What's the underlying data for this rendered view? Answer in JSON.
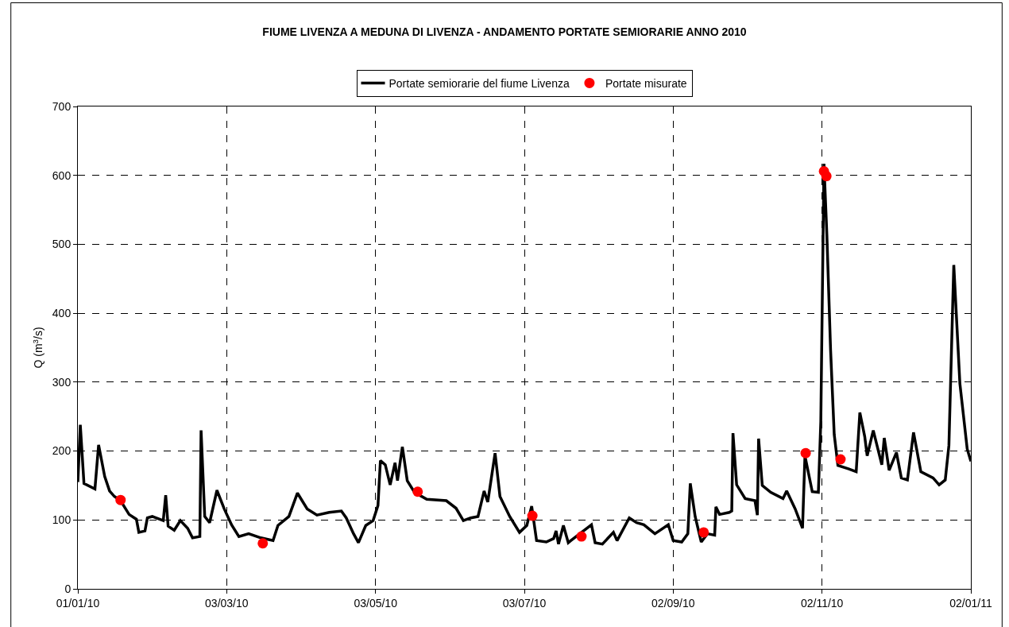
{
  "chart_data": {
    "type": "line",
    "title": "FIUME LIVENZA A MEDUNA DI LIVENZA - ANDAMENTO PORTATE SEMIORARIE ANNO 2010",
    "ylabel": "Q (m$^{3}$/s)",
    "xlim": [
      "2010-01-01",
      "2011-01-02"
    ],
    "xticks": [
      {
        "value": "2010-01-01",
        "label": "01/01/10"
      },
      {
        "value": "2010-03-03",
        "label": "03/03/10"
      },
      {
        "value": "2010-05-03",
        "label": "03/05/10"
      },
      {
        "value": "2010-07-03",
        "label": "03/07/10"
      },
      {
        "value": "2010-09-02",
        "label": "02/09/10"
      },
      {
        "value": "2010-11-02",
        "label": "02/11/10"
      },
      {
        "value": "2011-01-02",
        "label": "02/01/11"
      }
    ],
    "ylim": [
      0,
      700
    ],
    "yticks": [
      0,
      100,
      200,
      300,
      400,
      500,
      600,
      700
    ],
    "grid": true,
    "legend": "top",
    "series": [
      {
        "name": "Portate semiorarie del fiume Livenza",
        "color": "#000000",
        "marker": "none",
        "x": [
          "2010-01-01",
          "2010-01-02",
          "2010-01-03T12:00",
          "2010-01-08",
          "2010-01-09T12:00",
          "2010-01-12",
          "2010-01-14",
          "2010-01-16",
          "2010-01-18T12:00",
          "2010-01-22",
          "2010-01-25",
          "2010-01-26",
          "2010-01-28T12:00",
          "2010-01-29T12:00",
          "2010-01-31T12:00",
          "2010-02-05",
          "2010-02-06",
          "2010-02-07",
          "2010-02-09T12:00",
          "2010-02-12",
          "2010-02-15",
          "2010-02-17",
          "2010-02-20",
          "2010-02-20T12:00",
          "2010-02-22",
          "2010-02-24",
          "2010-02-27",
          "2010-03-02",
          "2010-03-05",
          "2010-03-08",
          "2010-03-12",
          "2010-03-17",
          "2010-03-22",
          "2010-03-24",
          "2010-03-28T12:00",
          "2010-04-01",
          "2010-04-05",
          "2010-04-09",
          "2010-04-14",
          "2010-04-19",
          "2010-04-21",
          "2010-04-24",
          "2010-04-26",
          "2010-04-29",
          "2010-05-02",
          "2010-05-04",
          "2010-05-05",
          "2010-05-07",
          "2010-05-09",
          "2010-05-11",
          "2010-05-12",
          "2010-05-14",
          "2010-05-16",
          "2010-05-19",
          "2010-05-24",
          "2010-06-01",
          "2010-06-05",
          "2010-06-08",
          "2010-06-11",
          "2010-06-14",
          "2010-06-16T12:00",
          "2010-06-18",
          "2010-06-21",
          "2010-06-23",
          "2010-06-27",
          "2010-07-01",
          "2010-07-04",
          "2010-07-06",
          "2010-07-08",
          "2010-07-12",
          "2010-07-15",
          "2010-07-16",
          "2010-07-17",
          "2010-07-19",
          "2010-07-21",
          "2010-07-22",
          "2010-07-30T12:00",
          "2010-08-01",
          "2010-08-04",
          "2010-08-08T12:00",
          "2010-08-10",
          "2010-08-15",
          "2010-08-18",
          "2010-08-21",
          "2010-08-25T12:00",
          "2010-08-31",
          "2010-09-02",
          "2010-09-05T12:00",
          "2010-09-08",
          "2010-09-09",
          "2010-09-11",
          "2010-09-13T12:00",
          "2010-09-16",
          "2010-09-19",
          "2010-09-19T12:00",
          "2010-09-21",
          "2010-09-25",
          "2010-09-26",
          "2010-09-26T12:00",
          "2010-09-28",
          "2010-10-01T12:00",
          "2010-10-05T12:00",
          "2010-10-06T12:00",
          "2010-10-07",
          "2010-10-08T12:00",
          "2010-10-12",
          "2010-10-17",
          "2010-10-18T12:00",
          "2010-10-22",
          "2010-10-25",
          "2010-10-26",
          "2010-10-29",
          "2010-10-31T12:00",
          "2010-11-01T12:00",
          "2010-11-02T19:00",
          "2010-11-04",
          "2010-11-05T12:00",
          "2010-11-07",
          "2010-11-08T12:00",
          "2010-11-13",
          "2010-11-16",
          "2010-11-17T12:00",
          "2010-11-19T12:00",
          "2010-11-20T12:00",
          "2010-11-23",
          "2010-11-26T12:00",
          "2010-11-27T12:00",
          "2010-11-29T12:00",
          "2010-12-02T12:00",
          "2010-12-04T12:00",
          "2010-12-07",
          "2010-12-09T12:00",
          "2010-12-12T12:00",
          "2010-12-17T12:00",
          "2010-12-20",
          "2010-12-22T12:00",
          "2010-12-24",
          "2010-12-26",
          "2010-12-28T12:00",
          "2010-12-31T12:00",
          "2011-01-02"
        ],
        "values": [
          155,
          238,
          153,
          145,
          209,
          163,
          142,
          134,
          128,
          108,
          101,
          82,
          84,
          103,
          105,
          99,
          136,
          91,
          85,
          99,
          88,
          74,
          76,
          230,
          105,
          96,
          143,
          116,
          93,
          76,
          80,
          74,
          70,
          92,
          105,
          139,
          116,
          107,
          111,
          113,
          103,
          80,
          67,
          92,
          99,
          121,
          186,
          180,
          151,
          183,
          157,
          206,
          157,
          140,
          130,
          128,
          117,
          99,
          103,
          105,
          142,
          126,
          197,
          134,
          105,
          82,
          92,
          120,
          70,
          68,
          73,
          84,
          65,
          92,
          67,
          70,
          93,
          67,
          65,
          82,
          70,
          103,
          96,
          93,
          80,
          93,
          70,
          68,
          80,
          153,
          105,
          68,
          80,
          78,
          119,
          108,
          111,
          113,
          226,
          151,
          131,
          128,
          107,
          218,
          150,
          140,
          131,
          142,
          116,
          88,
          193,
          141,
          140,
          243,
          617,
          512,
          347,
          224,
          179,
          174,
          170,
          256,
          221,
          193,
          230,
          180,
          219,
          172,
          198,
          161,
          158,
          227,
          170,
          161,
          151,
          158,
          208,
          470,
          298,
          203,
          185
        ]
      },
      {
        "name": "Portate misurate",
        "type": "scatter",
        "color": "#ff0000",
        "marker": "circle",
        "x": [
          "2010-01-18T12:00",
          "2010-03-17T19:00",
          "2010-05-20T07:00",
          "2010-07-06T07:00",
          "2010-07-26T10:00",
          "2010-09-14T12:00",
          "2010-10-26T07:00",
          "2010-11-02T19:00",
          "2010-11-03T19:00",
          "2010-11-09T14:00"
        ],
        "values": [
          129,
          66,
          141,
          106,
          76,
          82,
          197,
          606,
          599,
          188
        ]
      }
    ]
  }
}
